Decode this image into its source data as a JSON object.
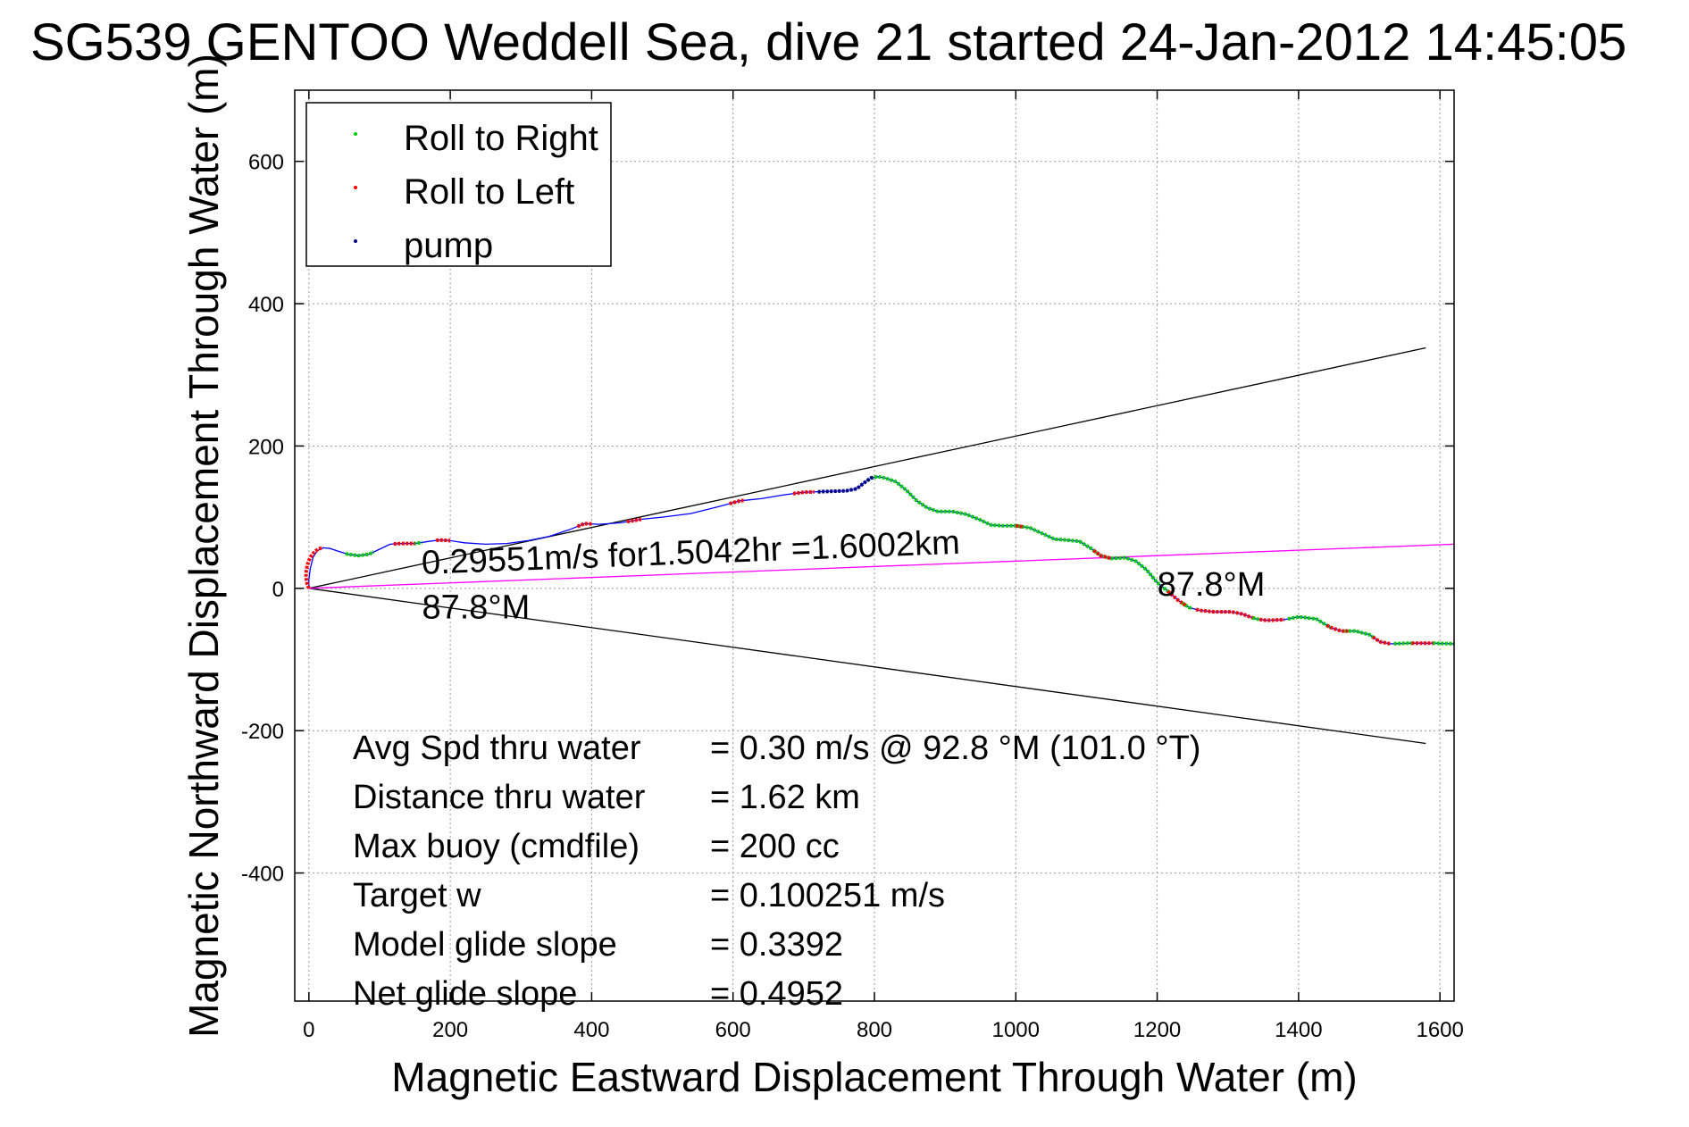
{
  "chart_data": {
    "type": "line",
    "title": "SG539 GENTOO Weddell Sea, dive 21 started 24-Jan-2012 14:45:05",
    "xlabel": "Magnetic Eastward Displacement Through Water (m)",
    "ylabel": "Magnetic Northward Displacement Through Water (m)",
    "xlim": [
      -20,
      1620
    ],
    "ylim": [
      -580,
      700
    ],
    "x_ticks": [
      0,
      200,
      400,
      600,
      800,
      1000,
      1200,
      1400,
      1600
    ],
    "y_ticks": [
      -400,
      -200,
      0,
      200,
      400,
      600
    ],
    "x_tick_labels": [
      "0",
      "200",
      "400",
      "600",
      "800",
      "1000",
      "1200",
      "1400",
      "1600"
    ],
    "y_tick_labels": [
      "-400",
      "-200",
      "0",
      "200",
      "400",
      "600"
    ],
    "grid": true,
    "legend_position": "top-left",
    "legend": [
      {
        "label": "Roll to Right",
        "color": "#00cc00"
      },
      {
        "label": "Roll to Left",
        "color": "#ff0000"
      },
      {
        "label": "pump",
        "color": "#000080"
      }
    ],
    "track_color": "#0000ff",
    "track": [
      [
        0,
        0
      ],
      [
        0,
        12
      ],
      [
        2,
        28
      ],
      [
        6,
        44
      ],
      [
        12,
        53
      ],
      [
        20,
        57
      ],
      [
        30,
        56
      ],
      [
        42,
        52
      ],
      [
        55,
        48
      ],
      [
        70,
        46
      ],
      [
        85,
        48
      ],
      [
        100,
        55
      ],
      [
        115,
        62
      ],
      [
        130,
        63
      ],
      [
        150,
        63
      ],
      [
        170,
        66
      ],
      [
        185,
        68
      ],
      [
        200,
        67
      ],
      [
        220,
        64
      ],
      [
        250,
        62
      ],
      [
        280,
        63
      ],
      [
        310,
        67
      ],
      [
        340,
        73
      ],
      [
        370,
        83
      ],
      [
        390,
        91
      ],
      [
        410,
        90
      ],
      [
        440,
        92
      ],
      [
        470,
        97
      ],
      [
        500,
        100
      ],
      [
        540,
        105
      ],
      [
        580,
        115
      ],
      [
        610,
        123
      ],
      [
        640,
        126
      ],
      [
        670,
        131
      ],
      [
        700,
        135
      ],
      [
        730,
        136
      ],
      [
        760,
        137
      ],
      [
        775,
        140
      ],
      [
        785,
        148
      ],
      [
        795,
        155
      ],
      [
        805,
        157
      ],
      [
        815,
        155
      ],
      [
        830,
        150
      ],
      [
        845,
        138
      ],
      [
        860,
        123
      ],
      [
        875,
        113
      ],
      [
        890,
        108
      ],
      [
        910,
        108
      ],
      [
        930,
        104
      ],
      [
        950,
        96
      ],
      [
        965,
        89
      ],
      [
        980,
        88
      ],
      [
        1000,
        88
      ],
      [
        1020,
        85
      ],
      [
        1040,
        76
      ],
      [
        1055,
        69
      ],
      [
        1070,
        68
      ],
      [
        1090,
        66
      ],
      [
        1105,
        57
      ],
      [
        1120,
        46
      ],
      [
        1135,
        42
      ],
      [
        1155,
        43
      ],
      [
        1170,
        38
      ],
      [
        1185,
        26
      ],
      [
        1200,
        8
      ],
      [
        1215,
        -4
      ],
      [
        1230,
        -17
      ],
      [
        1245,
        -27
      ],
      [
        1260,
        -31
      ],
      [
        1280,
        -33
      ],
      [
        1305,
        -33
      ],
      [
        1320,
        -36
      ],
      [
        1340,
        -43
      ],
      [
        1355,
        -45
      ],
      [
        1380,
        -44
      ],
      [
        1400,
        -40
      ],
      [
        1425,
        -43
      ],
      [
        1445,
        -55
      ],
      [
        1460,
        -60
      ],
      [
        1480,
        -60
      ],
      [
        1500,
        -65
      ],
      [
        1515,
        -75
      ],
      [
        1530,
        -78
      ],
      [
        1560,
        -77
      ],
      [
        1590,
        -77
      ],
      [
        1620,
        -78
      ]
    ],
    "roll_right_segments": [
      [
        52,
        92
      ],
      [
        148,
        160
      ],
      [
        790,
        1220
      ],
      [
        1235,
        1250
      ],
      [
        1335,
        1345
      ],
      [
        1385,
        1445
      ],
      [
        1465,
        1505
      ],
      [
        1535,
        1560
      ],
      [
        1590,
        1620
      ]
    ],
    "roll_left_segments": [
      [
        0,
        20
      ],
      [
        120,
        150
      ],
      [
        180,
        200
      ],
      [
        380,
        400
      ],
      [
        450,
        470
      ],
      [
        595,
        615
      ],
      [
        685,
        715
      ],
      [
        1000,
        1010
      ],
      [
        1110,
        1135
      ],
      [
        1215,
        1240
      ],
      [
        1255,
        1335
      ],
      [
        1345,
        1380
      ],
      [
        1440,
        1470
      ],
      [
        1505,
        1530
      ],
      [
        1560,
        1590
      ]
    ],
    "pump_segments": [
      [
        720,
        800
      ]
    ],
    "reference_lines": [
      {
        "name": "upper-bound",
        "color": "#000000",
        "from": [
          0,
          0
        ],
        "to": [
          1580,
          338
        ]
      },
      {
        "name": "lower-bound",
        "color": "#000000",
        "from": [
          0,
          0
        ],
        "to": [
          1580,
          -218
        ]
      },
      {
        "name": "heading-line",
        "color": "#ff00ff",
        "from": [
          0,
          0
        ],
        "to": [
          1620,
          62
        ]
      }
    ],
    "annotations": [
      {
        "text": "0.29551m/s for1.5042hr =1.6002km",
        "x": 160,
        "y": 20
      },
      {
        "text": "87.8°M",
        "x": 160,
        "y": -42
      },
      {
        "text": "87.8°M",
        "x": 1200,
        "y": -10
      }
    ],
    "stats": [
      {
        "label": "Avg Spd thru water",
        "value": "=  0.30 m/s @  92.8 °M (101.0 °T)"
      },
      {
        "label": "Distance thru water",
        "value": "=  1.62 km"
      },
      {
        "label": "Max buoy (cmdfile)",
        "value": "= 200 cc"
      },
      {
        "label": "Target w",
        "value": "= 0.100251 m/s"
      },
      {
        "label": "Model glide slope",
        "value": "= 0.3392"
      },
      {
        "label": "Net glide slope",
        "value": "= 0.4952"
      }
    ]
  }
}
